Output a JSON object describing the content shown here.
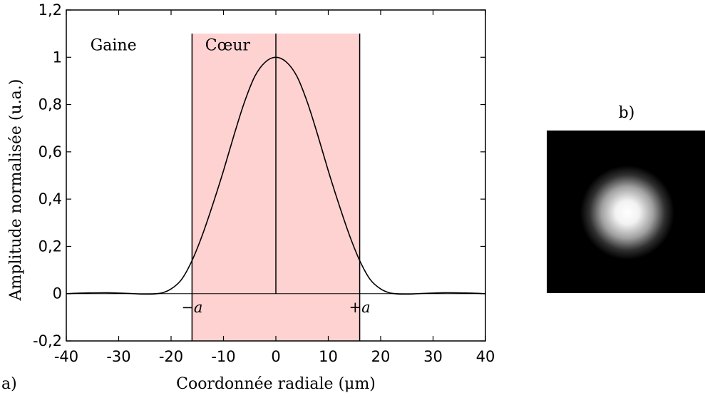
{
  "chart_data": [
    {
      "type": "line",
      "panel_label": "a)",
      "xlabel": "Coordonnée radiale (μm)",
      "ylabel": "Amplitude normalisée (u.a.)",
      "xlim": [
        -40,
        40
      ],
      "ylim": [
        -0.2,
        1.2
      ],
      "xticks": [
        -40,
        -30,
        -20,
        -10,
        0,
        10,
        20,
        30,
        40
      ],
      "xtick_labels": [
        "-40",
        "-30",
        "-20",
        "-10",
        "0",
        "10",
        "20",
        "30",
        "40"
      ],
      "yticks": [
        -0.2,
        0,
        0.2,
        0.4,
        0.6,
        0.8,
        1,
        1.2
      ],
      "ytick_labels": [
        "-0,2",
        "0",
        "0,2",
        "0,4",
        "0,6",
        "0,8",
        "1",
        "1,2"
      ],
      "grid": false,
      "core_region": {
        "x_range": [
          -16,
          16
        ],
        "color": "#ffd2d2",
        "label": "Cœur"
      },
      "cladding_label": "Gaine",
      "core_edge_labels": [
        "−a",
        "+a"
      ],
      "series": [
        {
          "color": "#000000",
          "x": [
            -40,
            -36,
            -32,
            -28,
            -25,
            -22,
            -20,
            -18,
            -16,
            -14,
            -12,
            -10,
            -8,
            -6,
            -4,
            -2,
            0,
            2,
            4,
            6,
            8,
            10,
            12,
            14,
            16,
            18,
            20,
            22,
            25,
            28,
            32,
            36,
            40
          ],
          "y": [
            0.0,
            0.003,
            0.004,
            0.001,
            -0.002,
            0.002,
            0.02,
            0.06,
            0.14,
            0.25,
            0.38,
            0.52,
            0.67,
            0.81,
            0.92,
            0.98,
            1.0,
            0.98,
            0.92,
            0.81,
            0.67,
            0.52,
            0.38,
            0.25,
            0.14,
            0.06,
            0.02,
            0.002,
            -0.002,
            0.001,
            0.004,
            0.003,
            0.0
          ]
        }
      ]
    },
    {
      "type": "heatmap",
      "panel_label": "b)",
      "description_colors": {
        "background": "#000000",
        "spot": "#ffffff"
      }
    }
  ]
}
